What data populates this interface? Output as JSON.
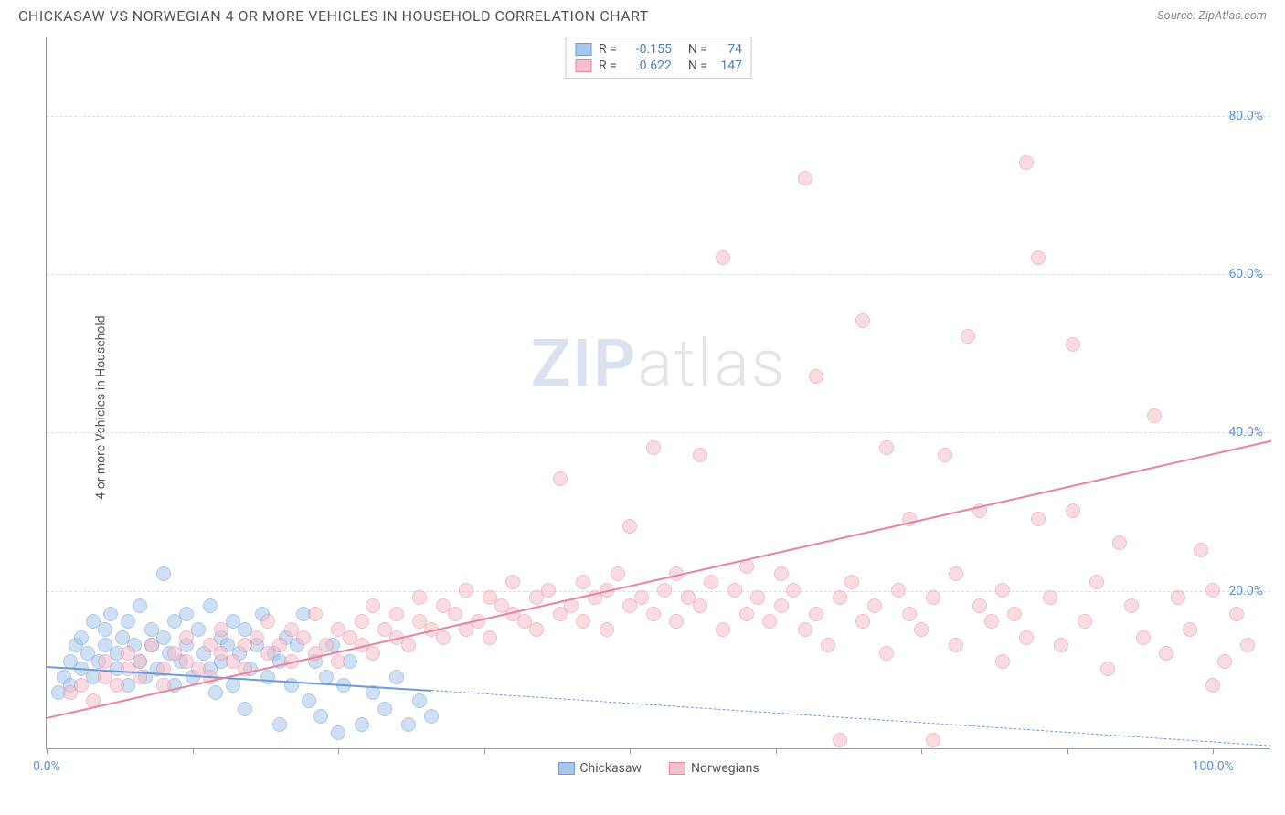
{
  "title": "CHICKASAW VS NORWEGIAN 4 OR MORE VEHICLES IN HOUSEHOLD CORRELATION CHART",
  "source": "Source: ZipAtlas.com",
  "y_axis_label": "4 or more Vehicles in Household",
  "watermark": {
    "left": "ZIP",
    "right": "atlas"
  },
  "chart": {
    "type": "scatter",
    "xlim": [
      0,
      105
    ],
    "ylim": [
      0,
      90
    ],
    "y_gridlines": [
      20,
      40,
      60,
      80
    ],
    "y_tick_labels": [
      "20.0%",
      "40.0%",
      "60.0%",
      "80.0%"
    ],
    "x_ticks": [
      0,
      12.5,
      25,
      37.5,
      50,
      62.5,
      75,
      87.5,
      100
    ],
    "x_tick_labels_left": "0.0%",
    "x_tick_labels_right": "100.0%",
    "grid_color": "#dddddd",
    "background_color": "#ffffff",
    "point_radius": 8,
    "point_opacity": 0.55,
    "series": [
      {
        "name": "Chickasaw",
        "color_fill": "#a8c5ec",
        "color_stroke": "#6b9bd8",
        "R": "-0.155",
        "N": "74",
        "regression": {
          "x1": 0,
          "y1": 10.5,
          "x2": 33,
          "y2": 7.5,
          "solid": true
        },
        "regression_ext": {
          "x1": 33,
          "y1": 7.5,
          "x2": 105,
          "y2": 0.5,
          "dashed": true
        },
        "points": [
          [
            1,
            7
          ],
          [
            1.5,
            9
          ],
          [
            2,
            11
          ],
          [
            2,
            8
          ],
          [
            2.5,
            13
          ],
          [
            3,
            10
          ],
          [
            3,
            14
          ],
          [
            3.5,
            12
          ],
          [
            4,
            16
          ],
          [
            4,
            9
          ],
          [
            4.5,
            11
          ],
          [
            5,
            15
          ],
          [
            5,
            13
          ],
          [
            5.5,
            17
          ],
          [
            6,
            12
          ],
          [
            6,
            10
          ],
          [
            6.5,
            14
          ],
          [
            7,
            16
          ],
          [
            7,
            8
          ],
          [
            7.5,
            13
          ],
          [
            8,
            18
          ],
          [
            8,
            11
          ],
          [
            8.5,
            9
          ],
          [
            9,
            15
          ],
          [
            9,
            13
          ],
          [
            9.5,
            10
          ],
          [
            10,
            22
          ],
          [
            10,
            14
          ],
          [
            10.5,
            12
          ],
          [
            11,
            16
          ],
          [
            11,
            8
          ],
          [
            11.5,
            11
          ],
          [
            12,
            17
          ],
          [
            12,
            13
          ],
          [
            12.5,
            9
          ],
          [
            13,
            15
          ],
          [
            13.5,
            12
          ],
          [
            14,
            18
          ],
          [
            14,
            10
          ],
          [
            14.5,
            7
          ],
          [
            15,
            14
          ],
          [
            15,
            11
          ],
          [
            15.5,
            13
          ],
          [
            16,
            16
          ],
          [
            16,
            8
          ],
          [
            16.5,
            12
          ],
          [
            17,
            15
          ],
          [
            17,
            5
          ],
          [
            17.5,
            10
          ],
          [
            18,
            13
          ],
          [
            18.5,
            17
          ],
          [
            19,
            9
          ],
          [
            19.5,
            12
          ],
          [
            20,
            3
          ],
          [
            20,
            11
          ],
          [
            20.5,
            14
          ],
          [
            21,
            8
          ],
          [
            21.5,
            13
          ],
          [
            22,
            17
          ],
          [
            22.5,
            6
          ],
          [
            23,
            11
          ],
          [
            23.5,
            4
          ],
          [
            24,
            9
          ],
          [
            24.5,
            13
          ],
          [
            25,
            2
          ],
          [
            25.5,
            8
          ],
          [
            26,
            11
          ],
          [
            27,
            3
          ],
          [
            28,
            7
          ],
          [
            29,
            5
          ],
          [
            30,
            9
          ],
          [
            31,
            3
          ],
          [
            32,
            6
          ],
          [
            33,
            4
          ]
        ]
      },
      {
        "name": "Norwegians",
        "color_fill": "#f5c0cc",
        "color_stroke": "#e8869f",
        "R": "0.622",
        "N": "147",
        "regression": {
          "x1": 0,
          "y1": 4,
          "x2": 105,
          "y2": 39,
          "solid": true
        },
        "points": [
          [
            2,
            7
          ],
          [
            3,
            8
          ],
          [
            4,
            6
          ],
          [
            5,
            9
          ],
          [
            5,
            11
          ],
          [
            6,
            8
          ],
          [
            7,
            10
          ],
          [
            7,
            12
          ],
          [
            8,
            9
          ],
          [
            8,
            11
          ],
          [
            9,
            13
          ],
          [
            10,
            10
          ],
          [
            10,
            8
          ],
          [
            11,
            12
          ],
          [
            12,
            11
          ],
          [
            12,
            14
          ],
          [
            13,
            10
          ],
          [
            14,
            13
          ],
          [
            14,
            9
          ],
          [
            15,
            12
          ],
          [
            15,
            15
          ],
          [
            16,
            11
          ],
          [
            17,
            13
          ],
          [
            17,
            10
          ],
          [
            18,
            14
          ],
          [
            19,
            12
          ],
          [
            19,
            16
          ],
          [
            20,
            13
          ],
          [
            21,
            11
          ],
          [
            21,
            15
          ],
          [
            22,
            14
          ],
          [
            23,
            12
          ],
          [
            23,
            17
          ],
          [
            24,
            13
          ],
          [
            25,
            15
          ],
          [
            25,
            11
          ],
          [
            26,
            14
          ],
          [
            27,
            16
          ],
          [
            27,
            13
          ],
          [
            28,
            12
          ],
          [
            28,
            18
          ],
          [
            29,
            15
          ],
          [
            30,
            14
          ],
          [
            30,
            17
          ],
          [
            31,
            13
          ],
          [
            32,
            19
          ],
          [
            32,
            16
          ],
          [
            33,
            15
          ],
          [
            34,
            18
          ],
          [
            34,
            14
          ],
          [
            35,
            17
          ],
          [
            36,
            20
          ],
          [
            36,
            15
          ],
          [
            37,
            16
          ],
          [
            38,
            19
          ],
          [
            38,
            14
          ],
          [
            39,
            18
          ],
          [
            40,
            17
          ],
          [
            40,
            21
          ],
          [
            41,
            16
          ],
          [
            42,
            19
          ],
          [
            42,
            15
          ],
          [
            43,
            20
          ],
          [
            44,
            34
          ],
          [
            44,
            17
          ],
          [
            45,
            18
          ],
          [
            46,
            21
          ],
          [
            46,
            16
          ],
          [
            47,
            19
          ],
          [
            48,
            20
          ],
          [
            48,
            15
          ],
          [
            49,
            22
          ],
          [
            50,
            18
          ],
          [
            50,
            28
          ],
          [
            51,
            19
          ],
          [
            52,
            17
          ],
          [
            52,
            38
          ],
          [
            53,
            20
          ],
          [
            54,
            16
          ],
          [
            54,
            22
          ],
          [
            55,
            19
          ],
          [
            56,
            18
          ],
          [
            56,
            37
          ],
          [
            57,
            21
          ],
          [
            58,
            15
          ],
          [
            58,
            62
          ],
          [
            59,
            20
          ],
          [
            60,
            17
          ],
          [
            60,
            23
          ],
          [
            61,
            19
          ],
          [
            62,
            16
          ],
          [
            63,
            22
          ],
          [
            63,
            18
          ],
          [
            64,
            20
          ],
          [
            65,
            15
          ],
          [
            65,
            72
          ],
          [
            66,
            17
          ],
          [
            66,
            47
          ],
          [
            67,
            13
          ],
          [
            68,
            19
          ],
          [
            68,
            1
          ],
          [
            69,
            21
          ],
          [
            70,
            16
          ],
          [
            70,
            54
          ],
          [
            71,
            18
          ],
          [
            72,
            12
          ],
          [
            72,
            38
          ],
          [
            73,
            20
          ],
          [
            74,
            17
          ],
          [
            74,
            29
          ],
          [
            75,
            15
          ],
          [
            76,
            19
          ],
          [
            76,
            1
          ],
          [
            77,
            37
          ],
          [
            78,
            13
          ],
          [
            78,
            22
          ],
          [
            79,
            52
          ],
          [
            80,
            18
          ],
          [
            80,
            30
          ],
          [
            81,
            16
          ],
          [
            82,
            20
          ],
          [
            82,
            11
          ],
          [
            83,
            17
          ],
          [
            84,
            14
          ],
          [
            84,
            74
          ],
          [
            85,
            62
          ],
          [
            86,
            19
          ],
          [
            87,
            13
          ],
          [
            88,
            51
          ],
          [
            88,
            30
          ],
          [
            89,
            16
          ],
          [
            90,
            21
          ],
          [
            91,
            10
          ],
          [
            92,
            26
          ],
          [
            93,
            18
          ],
          [
            94,
            14
          ],
          [
            95,
            42
          ],
          [
            96,
            12
          ],
          [
            97,
            19
          ],
          [
            98,
            15
          ],
          [
            99,
            25
          ],
          [
            100,
            20
          ],
          [
            101,
            11
          ],
          [
            102,
            17
          ],
          [
            103,
            13
          ],
          [
            100,
            8
          ],
          [
            85,
            29
          ]
        ]
      }
    ]
  },
  "legend_top_labels": {
    "R": "R =",
    "N": "N ="
  },
  "legend_bottom": [
    "Chickasaw",
    "Norwegians"
  ],
  "stat_color": "#4a7fc9"
}
